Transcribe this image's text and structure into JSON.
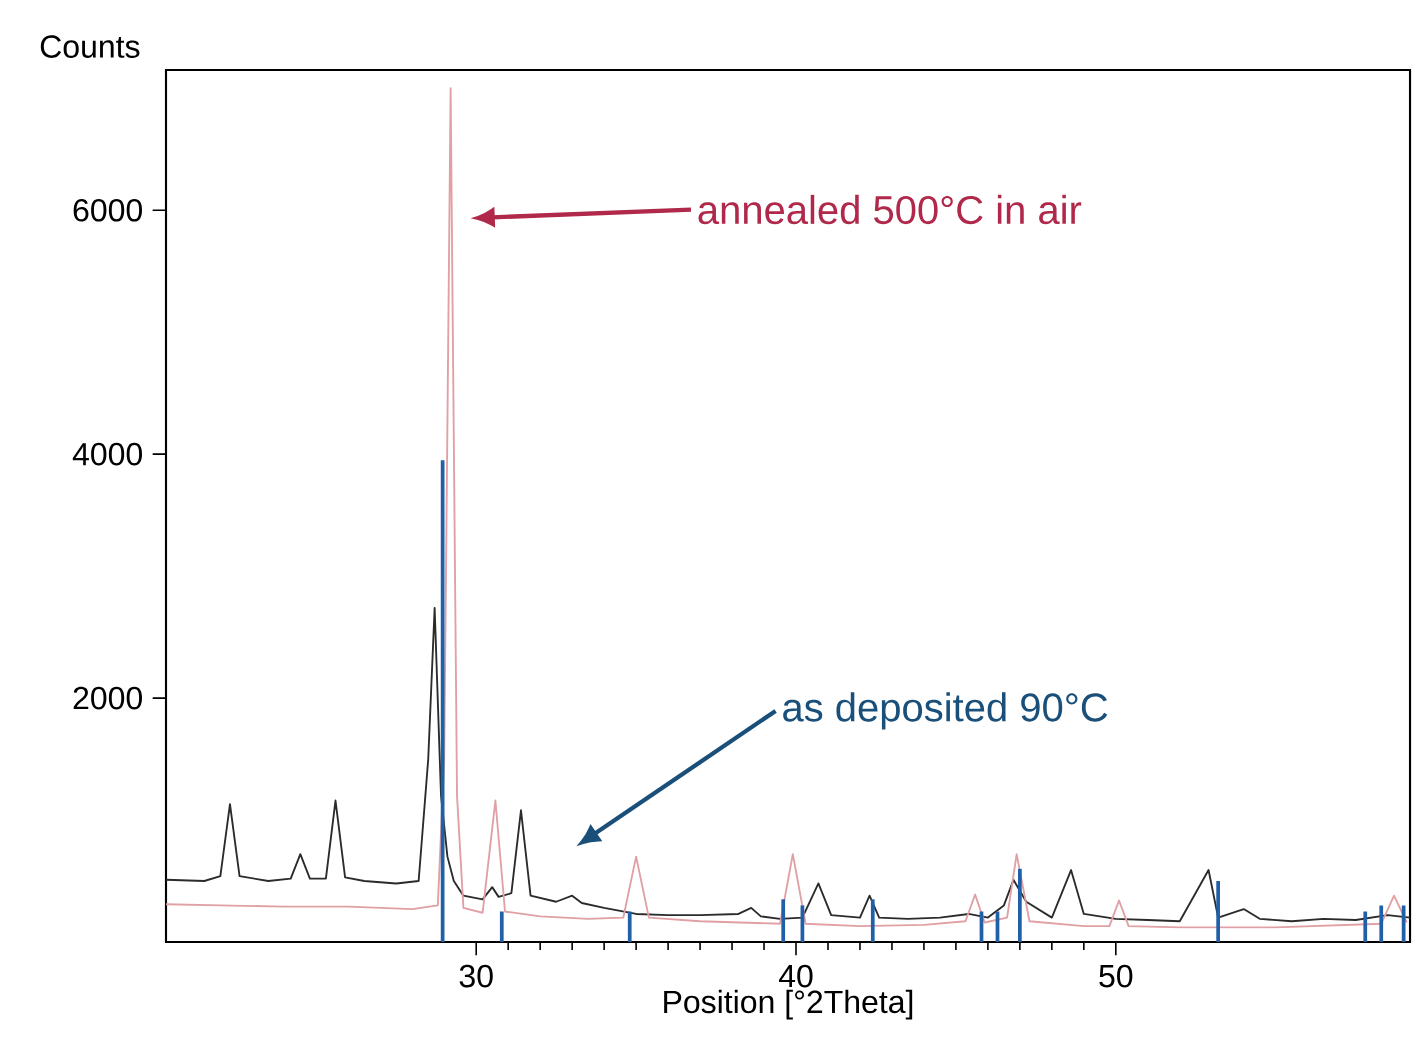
{
  "chart_data": {
    "type": "line",
    "xlabel": "Position [°2Theta]",
    "ylabel": "Counts",
    "xlim": [
      20.3,
      59.2
    ],
    "ylim": [
      0,
      7150
    ],
    "xticks": [
      30,
      40,
      50
    ],
    "yticks": [
      2000,
      4000,
      6000
    ],
    "grid": false,
    "marker": "none",
    "line_style": "solid",
    "series": [
      {
        "color": "#2b2b2b",
        "x": [
          20.3,
          21.5,
          22.0,
          22.3,
          22.6,
          23.5,
          24.2,
          24.5,
          24.8,
          25.3,
          25.6,
          25.9,
          26.5,
          27.5,
          28.2,
          28.5,
          28.7,
          28.9,
          29.1,
          29.3,
          29.6,
          30.2,
          30.5,
          30.7,
          31.1,
          31.4,
          31.7,
          32.5,
          33.0,
          33.3,
          34.0,
          35.0,
          36.0,
          37.0,
          38.2,
          38.6,
          38.9,
          39.5,
          40.2,
          40.7,
          41.1,
          42.0,
          42.3,
          42.6,
          43.5,
          44.5,
          45.4,
          46.0,
          46.5,
          46.8,
          47.2,
          48.0,
          48.6,
          49.0,
          50.0,
          51.0,
          52.0,
          52.9,
          53.2,
          54.0,
          54.5,
          55.5,
          56.5,
          57.5,
          58.5,
          59.2
        ],
        "values": [
          510,
          500,
          540,
          1130,
          540,
          500,
          520,
          720,
          520,
          520,
          1160,
          530,
          500,
          480,
          500,
          1500,
          2740,
          1200,
          700,
          500,
          380,
          350,
          450,
          370,
          400,
          1080,
          380,
          330,
          380,
          320,
          280,
          230,
          220,
          220,
          230,
          280,
          210,
          190,
          200,
          480,
          220,
          200,
          380,
          200,
          190,
          200,
          230,
          200,
          300,
          510,
          330,
          200,
          590,
          230,
          190,
          180,
          170,
          590,
          200,
          270,
          190,
          170,
          190,
          180,
          220,
          200
        ]
      },
      {
        "color": "#e0a0a4",
        "x": [
          20.3,
          22,
          24,
          26,
          28,
          28.8,
          29.0,
          29.2,
          29.4,
          29.6,
          30.2,
          30.6,
          30.9,
          32,
          33.5,
          34.6,
          35.0,
          35.4,
          37,
          39.5,
          39.9,
          40.3,
          42,
          44,
          45.3,
          45.6,
          45.9,
          46.6,
          46.9,
          47.3,
          49,
          49.8,
          50.1,
          50.4,
          52,
          55,
          58.3,
          58.7,
          59.1
        ],
        "values": [
          310,
          300,
          290,
          290,
          270,
          300,
          1500,
          7000,
          1200,
          280,
          240,
          1160,
          250,
          210,
          190,
          200,
          700,
          200,
          170,
          150,
          720,
          150,
          130,
          140,
          170,
          390,
          160,
          200,
          720,
          170,
          130,
          130,
          340,
          130,
          120,
          120,
          150,
          380,
          160
        ]
      },
      {
        "type": "bar",
        "color": "#2060a8",
        "x": [
          28.95,
          30.8,
          34.8,
          39.6,
          40.2,
          42.4,
          45.8,
          46.3,
          47.0,
          53.2,
          57.8,
          58.3,
          59.0
        ],
        "values": [
          3950,
          250,
          250,
          350,
          300,
          350,
          250,
          250,
          600,
          500,
          250,
          300,
          300
        ]
      }
    ],
    "annotations": [
      "annealed 500°C in air",
      "as deposited   90°C"
    ]
  }
}
